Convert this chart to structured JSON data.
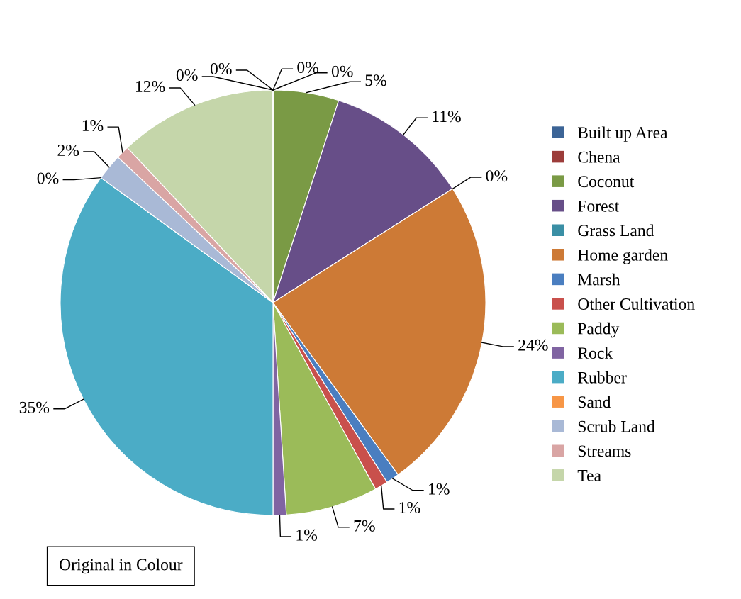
{
  "chart_data": {
    "type": "pie",
    "categories": [
      "Built up Area",
      "Chena",
      "Coconut",
      "Forest",
      "Grass Land",
      "Home garden",
      "Marsh",
      "Other Cultivation",
      "Paddy",
      "Rock",
      "Rubber",
      "Sand",
      "Scrub Land",
      "Streams",
      "Tea",
      null,
      null
    ],
    "values": [
      0,
      0,
      5,
      11,
      0,
      24,
      1,
      1,
      7,
      1,
      35,
      0,
      2,
      1,
      12,
      0,
      0
    ],
    "value_labels": [
      "0%",
      "0%",
      "5%",
      "11%",
      "0%",
      "24%",
      "1%",
      "1%",
      "7%",
      "1%",
      "35%",
      "0%",
      "2%",
      "1%",
      "12%",
      "0%",
      "0%"
    ],
    "colors": [
      "#3c6496",
      "#9c3c3a",
      "#7a9a45",
      "#674e88",
      "#3a8fa5",
      "#cd7a36",
      "#4a7ec0",
      "#c9504c",
      "#9bbb59",
      "#8064a2",
      "#4bacc6",
      "#f79646",
      "#a9b9d6",
      "#d9a5a4",
      "#c5d6aa",
      "#2c4d75",
      "#772c2a"
    ],
    "legend": "right",
    "annotations": [
      "Original in Colour"
    ]
  }
}
